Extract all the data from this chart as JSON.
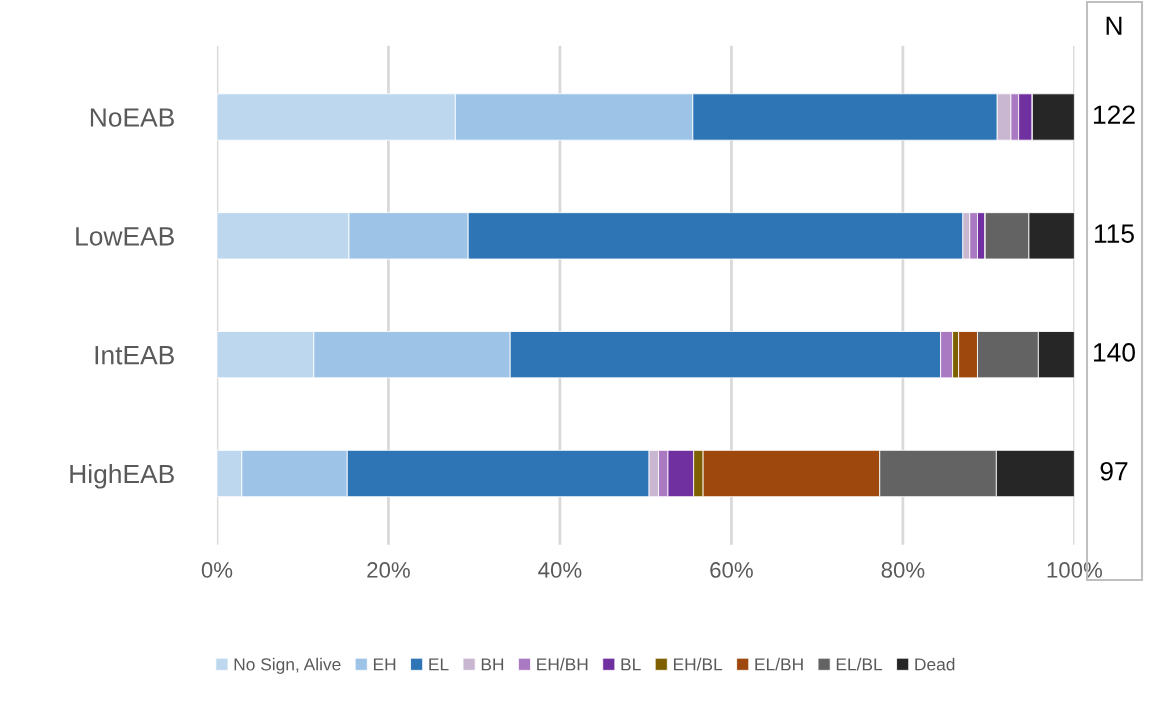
{
  "chart_data": {
    "type": "bar",
    "orientation": "horizontal",
    "stacked": true,
    "categories": [
      "NoEAB",
      "LowEAB",
      "IntEAB",
      "HighEAB"
    ],
    "series": [
      {
        "name": "No Sign, Alive",
        "color": "#bdd7ee",
        "values": [
          27.8,
          15.4,
          11.3,
          2.9
        ]
      },
      {
        "name": "EH",
        "color": "#9dc3e6",
        "values": [
          27.7,
          13.9,
          22.9,
          12.3
        ]
      },
      {
        "name": "EL",
        "color": "#2e75b6",
        "values": [
          35.5,
          57.7,
          50.2,
          35.2
        ]
      },
      {
        "name": "BH",
        "color": "#c9b6d1",
        "values": [
          1.6,
          0.8,
          0,
          1.1
        ]
      },
      {
        "name": "EH/BH",
        "color": "#a979c1",
        "values": [
          0.9,
          0.9,
          1.4,
          1.1
        ]
      },
      {
        "name": "BL",
        "color": "#7030a0",
        "values": [
          1.6,
          0.9,
          0,
          3.0
        ]
      },
      {
        "name": "EH/BL",
        "color": "#7f6000",
        "values": [
          0,
          0,
          0.7,
          1.1
        ]
      },
      {
        "name": "EL/BH",
        "color": "#9e480e",
        "values": [
          0,
          0,
          2.2,
          20.6
        ]
      },
      {
        "name": "EL/BL",
        "color": "#636363",
        "values": [
          0,
          5.1,
          7.1,
          13.6
        ]
      },
      {
        "name": "Dead",
        "color": "#262626",
        "values": [
          4.9,
          5.3,
          4.2,
          9.1
        ]
      }
    ],
    "xlim": [
      0,
      100
    ],
    "xticks": [
      {
        "value": 0,
        "label": "0%"
      },
      {
        "value": 20,
        "label": "20%"
      },
      {
        "value": 40,
        "label": "40%"
      },
      {
        "value": 60,
        "label": "60%"
      },
      {
        "value": 80,
        "label": "80%"
      },
      {
        "value": 100,
        "label": "100%"
      }
    ],
    "grid": "x",
    "legend": "bottom",
    "annotations": [
      "N",
      "122",
      "115",
      "140",
      "97"
    ]
  }
}
